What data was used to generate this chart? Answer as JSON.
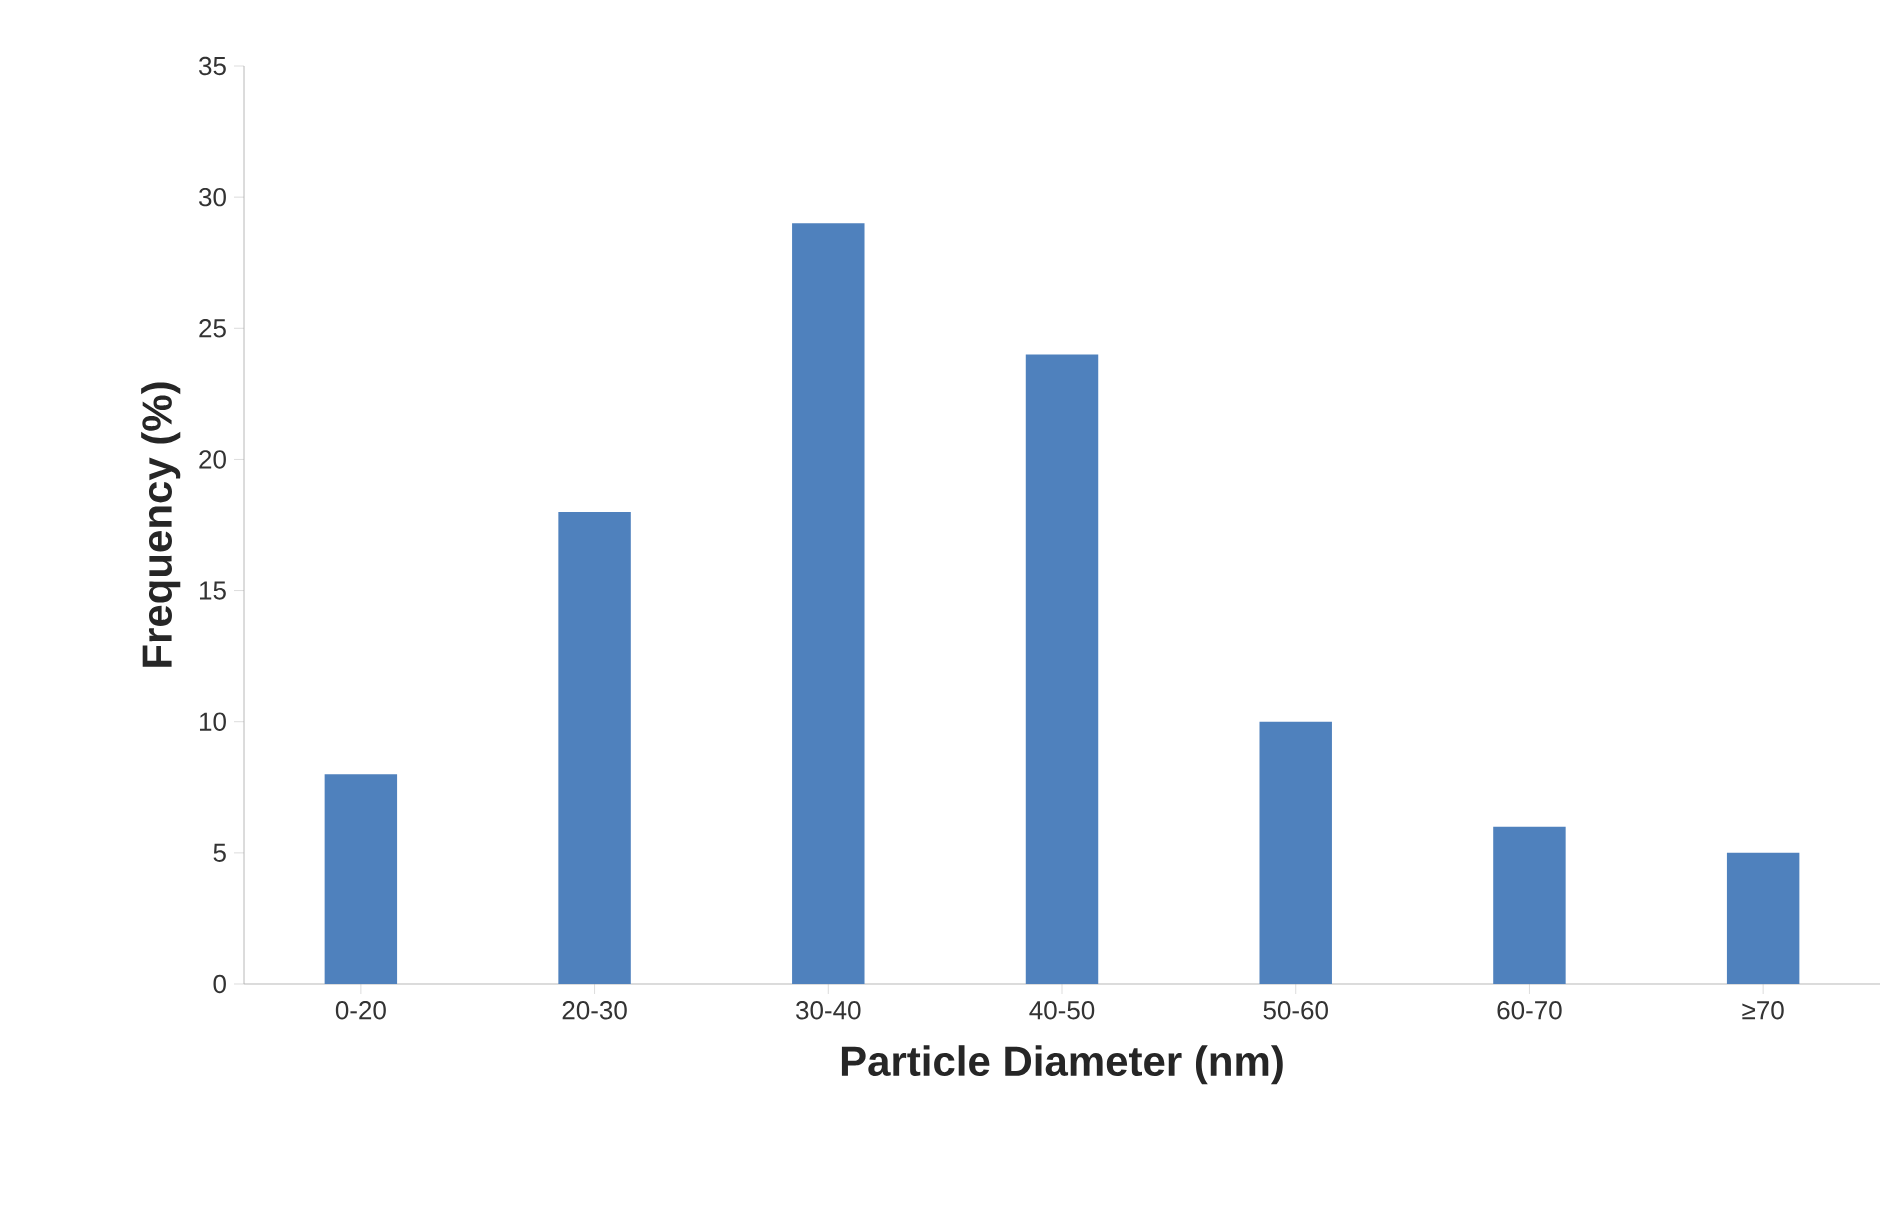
{
  "chart_data": {
    "type": "bar",
    "xlabel": "Particle Diameter (nm)",
    "ylabel": "Frequency (%)",
    "categories": [
      "0-20",
      "20-30",
      "30-40",
      "40-50",
      "50-60",
      "60-70",
      "≥70"
    ],
    "values": [
      8,
      18,
      29,
      24,
      10,
      6,
      5
    ],
    "color": "#4f81bd",
    "ylim": [
      0,
      35
    ],
    "yticks": [
      0,
      5,
      10,
      15,
      20,
      25,
      30,
      35
    ],
    "grid": false
  }
}
